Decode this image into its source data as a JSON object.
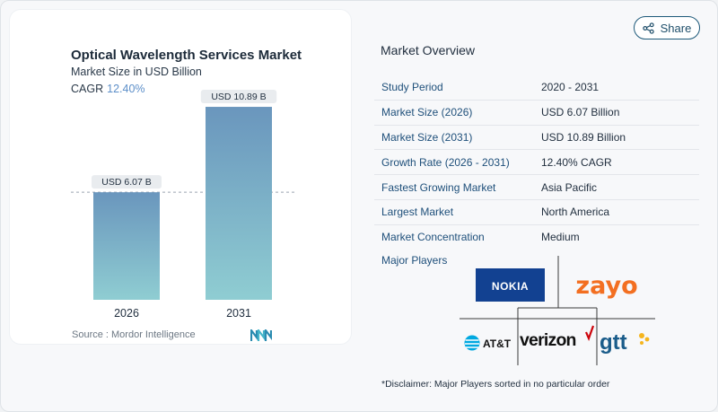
{
  "share": {
    "label": "Share"
  },
  "chart_panel": {
    "title": "Optical Wavelength Services Market",
    "subtitle": "Market Size in USD Billion",
    "cagr_label": "CAGR",
    "cagr_value": "12.40%",
    "source": "Source :  Mordor Intelligence"
  },
  "chart_data": {
    "type": "bar",
    "categories": [
      "2026",
      "2031"
    ],
    "values": [
      6.07,
      10.89
    ],
    "data_labels": [
      "USD 6.07 B",
      "USD 10.89 B"
    ],
    "title": "Optical Wavelength Services Market",
    "xlabel": "",
    "ylabel": "",
    "ylim": [
      0,
      11.5
    ],
    "grid": false,
    "reference_line": 6.07
  },
  "market_overview": {
    "title": "Market Overview",
    "rows": [
      {
        "key": "Study Period",
        "value": "2020 - 2031"
      },
      {
        "key": "Market Size (2026)",
        "value": "USD 6.07 Billion"
      },
      {
        "key": "Market Size (2031)",
        "value": "USD 10.89 Billion"
      },
      {
        "key": "Growth Rate (2026 - 2031)",
        "value": "12.40% CAGR"
      },
      {
        "key": "Fastest Growing Market",
        "value": "Asia Pacific"
      },
      {
        "key": "Largest Market",
        "value": "North America"
      },
      {
        "key": "Market Concentration",
        "value": "Medium"
      }
    ],
    "major_players_label": "Major Players",
    "players": [
      "NOKIA",
      "zayo",
      "AT&T",
      "verizon",
      "gtt"
    ]
  },
  "disclaimer": "*Disclaimer: Major Players sorted in no particular order",
  "colors": {
    "bar_top": "#6a96bd",
    "bar_bottom": "#8fcdd2",
    "accent": "#5d8fc9",
    "nokia": "#124191",
    "zayo": "#f36f21",
    "verizon_check": "#cd040b",
    "att": "#00a8e0",
    "gtt": "#1a5c8a"
  }
}
